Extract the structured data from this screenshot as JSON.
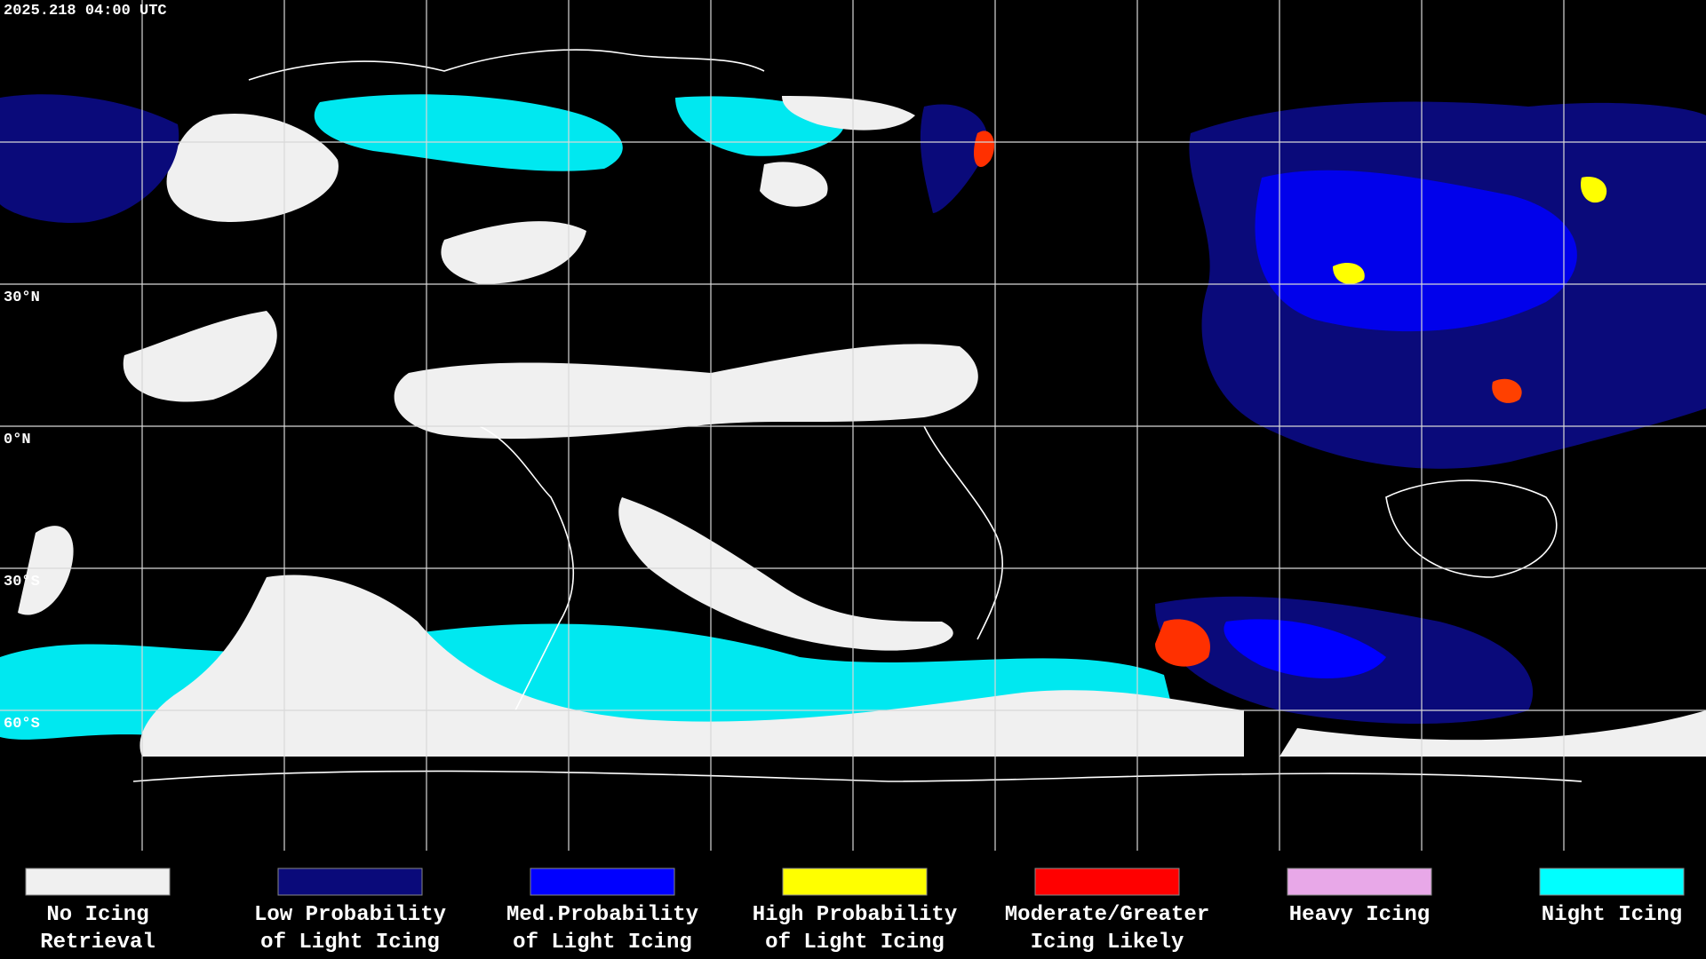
{
  "timestamp": "2025.218 04:00 UTC",
  "latitude_labels": [
    "30°N",
    "0°N",
    "30°S",
    "60°S"
  ],
  "legend": [
    {
      "color": "#f0f0f0",
      "label": [
        "No Icing",
        "Retrieval"
      ]
    },
    {
      "color": "#0a0a7a",
      "label": [
        "Low Probability",
        "of Light Icing"
      ]
    },
    {
      "color": "#0000ff",
      "label": [
        "Med.Probability",
        "of Light Icing"
      ]
    },
    {
      "color": "#ffff00",
      "label": [
        "High Probability",
        "of Light Icing"
      ]
    },
    {
      "color": "#ff0000",
      "label": [
        "Moderate/Greater",
        "Icing Likely"
      ]
    },
    {
      "color": "#e8a8e8",
      "label": [
        "Heavy Icing"
      ]
    },
    {
      "color": "#00ffff",
      "label": [
        "Night Icing"
      ]
    }
  ]
}
